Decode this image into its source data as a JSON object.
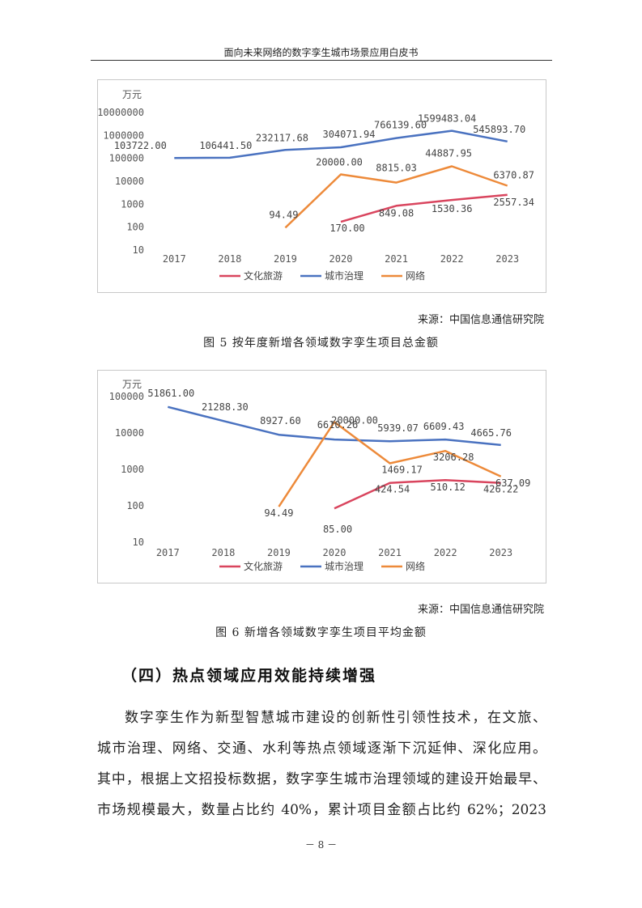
{
  "header": {
    "title": "面向未来网络的数字孪生城市场景应用白皮书"
  },
  "figure5": {
    "caption": "图 5 按年度新增各领域数字孪生项目总金额",
    "source": "来源：中国信息通信研究院"
  },
  "figure6": {
    "caption": "图 6 新增各领域数字孪生项目平均金额",
    "source": "来源：中国信息通信研究院"
  },
  "chart_data": [
    {
      "type": "line",
      "title": "",
      "unit_label": "万元",
      "yscale": "log",
      "ylim": [
        10,
        10000000
      ],
      "yticks": [
        10,
        100,
        1000,
        10000,
        100000,
        1000000,
        10000000
      ],
      "ytick_labels": [
        "10",
        "100",
        "1000",
        "10000",
        "100000",
        "1000000",
        "10000000"
      ],
      "categories": [
        "2017",
        "2018",
        "2019",
        "2020",
        "2021",
        "2022",
        "2023"
      ],
      "legend": "bottom-center",
      "grid": false,
      "series": [
        {
          "name": "文化旅游",
          "color": "#d9455e",
          "values": [
            null,
            null,
            null,
            170.0,
            849.08,
            1530.36,
            2557.34
          ],
          "labels": [
            "",
            "",
            "",
            "170.00",
            "849.08",
            "1530.36",
            "2557.34"
          ]
        },
        {
          "name": "城市治理",
          "color": "#4a72c0",
          "values": [
            103722.0,
            106441.5,
            232117.68,
            304071.94,
            766139.6,
            1599483.04,
            545893.7
          ],
          "labels": [
            "103722.00",
            "106441.50",
            "232117.68",
            "304071.94",
            "766139.60",
            "1599483.04",
            "545893.70"
          ]
        },
        {
          "name": "网络",
          "color": "#ed8a3a",
          "values": [
            null,
            null,
            94.49,
            20000.0,
            8815.03,
            44887.95,
            6370.87
          ],
          "labels": [
            "",
            "",
            "94.49",
            "20000.00",
            "8815.03",
            "44887.95",
            "6370.87"
          ]
        }
      ]
    },
    {
      "type": "line",
      "title": "",
      "unit_label": "万元",
      "yscale": "log",
      "ylim": [
        10,
        100000
      ],
      "yticks": [
        10,
        100,
        1000,
        10000,
        100000
      ],
      "ytick_labels": [
        "10",
        "100",
        "1000",
        "10000",
        "100000"
      ],
      "categories": [
        "2017",
        "2018",
        "2019",
        "2020",
        "2021",
        "2022",
        "2023"
      ],
      "legend": "bottom-center",
      "grid": false,
      "series": [
        {
          "name": "文化旅游",
          "color": "#d9455e",
          "values": [
            null,
            null,
            null,
            85.0,
            424.54,
            510.12,
            426.22
          ],
          "labels": [
            "",
            "",
            "",
            "85.00",
            "424.54",
            "510.12",
            "426.22"
          ]
        },
        {
          "name": "城市治理",
          "color": "#4a72c0",
          "values": [
            51861.0,
            21288.3,
            8927.6,
            6610.26,
            5939.07,
            6609.43,
            4665.76
          ],
          "labels": [
            "51861.00",
            "21288.30",
            "8927.60",
            "6610.26",
            "5939.07",
            "6609.43",
            "4665.76"
          ]
        },
        {
          "name": "网络",
          "color": "#ed8a3a",
          "values": [
            null,
            null,
            94.49,
            20000.0,
            1469.17,
            3206.28,
            637.09
          ],
          "labels": [
            "",
            "",
            "94.49",
            "20000.00",
            "1469.17",
            "3206.28",
            "637.09"
          ]
        }
      ]
    }
  ],
  "section": {
    "heading": "（四）热点领域应用效能持续增强"
  },
  "body": {
    "lines": [
      "数字孪生作为新型智慧城市建设的创新性引领性技术，在文旅、",
      "城市治理、网络、交通、水利等热点领域逐渐下沉延伸、深化应用。",
      "其中，根据上文招投标数据，数字孪生城市治理领域的建设开始最早、",
      "市场规模最大，数量占比约 40%，累计项目金额占比约 62%；2023"
    ]
  },
  "footer": {
    "page_number": "－ 8 －"
  }
}
